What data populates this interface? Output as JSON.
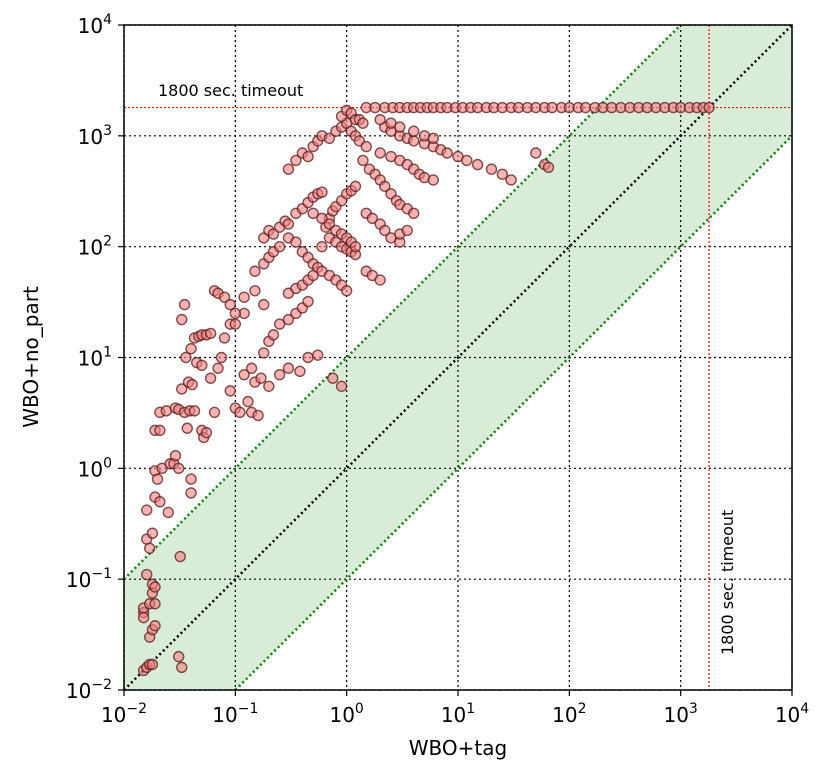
{
  "chart_data": {
    "type": "scatter",
    "xlabel": "WBO+tag",
    "ylabel": "WBO+no_part",
    "xscale": "log",
    "yscale": "log",
    "xlim": [
      0.01,
      10000
    ],
    "ylim": [
      0.01,
      10000
    ],
    "grid": true,
    "x_ticks": [
      {
        "base": "10",
        "exp": "−2",
        "value": 0.01
      },
      {
        "base": "10",
        "exp": "−1",
        "value": 0.1
      },
      {
        "base": "10",
        "exp": "0",
        "value": 1
      },
      {
        "base": "10",
        "exp": "1",
        "value": 10
      },
      {
        "base": "10",
        "exp": "2",
        "value": 100
      },
      {
        "base": "10",
        "exp": "3",
        "value": 1000
      },
      {
        "base": "10",
        "exp": "4",
        "value": 10000
      }
    ],
    "y_ticks": [
      {
        "base": "10",
        "exp": "−2",
        "value": 0.01
      },
      {
        "base": "10",
        "exp": "−1",
        "value": 0.1
      },
      {
        "base": "10",
        "exp": "0",
        "value": 1
      },
      {
        "base": "10",
        "exp": "1",
        "value": 10
      },
      {
        "base": "10",
        "exp": "2",
        "value": 100
      },
      {
        "base": "10",
        "exp": "3",
        "value": 1000
      },
      {
        "base": "10",
        "exp": "4",
        "value": 10000
      }
    ],
    "timeout": 1800,
    "timeout_label_h": "1800 sec. timeout",
    "timeout_label_v": "1800 sec. timeout",
    "band_factor": 10,
    "colors": {
      "marker_fill": "#f08080",
      "marker_edge": "#5a1a1a",
      "timeout_line": "#ff0000",
      "diagonal": "#000000",
      "band_line": "#008000",
      "band_fill": "#d9ecd8",
      "grid": "#000000"
    },
    "points": [
      [
        0.015,
        0.015
      ],
      [
        0.016,
        0.016
      ],
      [
        0.017,
        0.017
      ],
      [
        0.018,
        0.017
      ],
      [
        0.015,
        0.05
      ],
      [
        0.015,
        0.055
      ],
      [
        0.015,
        0.045
      ],
      [
        0.017,
        0.03
      ],
      [
        0.018,
        0.035
      ],
      [
        0.019,
        0.038
      ],
      [
        0.016,
        0.11
      ],
      [
        0.018,
        0.09
      ],
      [
        0.018,
        0.075
      ],
      [
        0.019,
        0.085
      ],
      [
        0.017,
        0.06
      ],
      [
        0.019,
        0.06
      ],
      [
        0.031,
        0.02
      ],
      [
        0.033,
        0.016
      ],
      [
        0.032,
        0.16
      ],
      [
        0.016,
        0.42
      ],
      [
        0.016,
        0.23
      ],
      [
        0.017,
        0.19
      ],
      [
        0.018,
        0.26
      ],
      [
        0.019,
        0.55
      ],
      [
        0.021,
        0.5
      ],
      [
        0.019,
        0.95
      ],
      [
        0.022,
        1.0
      ],
      [
        0.02,
        0.8
      ],
      [
        0.019,
        2.2
      ],
      [
        0.021,
        2.2
      ],
      [
        0.021,
        3.2
      ],
      [
        0.024,
        3.3
      ],
      [
        0.026,
        1.1
      ],
      [
        0.028,
        1.1
      ],
      [
        0.029,
        1.3
      ],
      [
        0.025,
        0.4
      ],
      [
        0.031,
        1.0
      ],
      [
        0.029,
        3.5
      ],
      [
        0.031,
        3.4
      ],
      [
        0.033,
        5.2
      ],
      [
        0.035,
        3.2
      ],
      [
        0.037,
        2.3
      ],
      [
        0.04,
        0.6
      ],
      [
        0.04,
        0.8
      ],
      [
        0.039,
        3.3
      ],
      [
        0.043,
        3.3
      ],
      [
        0.038,
        6.0
      ],
      [
        0.041,
        5.7
      ],
      [
        0.036,
        10.0
      ],
      [
        0.04,
        12.0
      ],
      [
        0.043,
        15.0
      ],
      [
        0.047,
        15.5
      ],
      [
        0.05,
        16.0
      ],
      [
        0.055,
        16.0
      ],
      [
        0.06,
        16.5
      ],
      [
        0.05,
        2.2
      ],
      [
        0.052,
        1.9
      ],
      [
        0.055,
        2.1
      ],
      [
        0.033,
        22.0
      ],
      [
        0.035,
        30.0
      ],
      [
        0.045,
        9.0
      ],
      [
        0.05,
        8.5
      ],
      [
        0.06,
        6.5
      ],
      [
        0.065,
        3.2
      ],
      [
        0.07,
        8.0
      ],
      [
        0.075,
        10.0
      ],
      [
        0.08,
        15.0
      ],
      [
        0.09,
        20.0
      ],
      [
        0.1,
        20.0
      ],
      [
        0.12,
        25.0
      ],
      [
        0.065,
        40.0
      ],
      [
        0.07,
        38.0
      ],
      [
        0.08,
        35.0
      ],
      [
        0.09,
        30.0
      ],
      [
        0.1,
        25.0
      ],
      [
        0.12,
        35.0
      ],
      [
        0.15,
        40.0
      ],
      [
        0.18,
        30.0
      ],
      [
        0.1,
        3.5
      ],
      [
        0.11,
        3.2
      ],
      [
        0.14,
        3.2
      ],
      [
        0.16,
        3.0
      ],
      [
        0.13,
        4.0
      ],
      [
        0.09,
        5.0
      ],
      [
        0.15,
        6.0
      ],
      [
        0.17,
        6.5
      ],
      [
        0.2,
        5.5
      ],
      [
        0.25,
        7.0
      ],
      [
        0.3,
        8.0
      ],
      [
        0.38,
        7.5
      ],
      [
        0.45,
        10.0
      ],
      [
        0.55,
        10.5
      ],
      [
        0.75,
        6.5
      ],
      [
        0.9,
        5.5
      ],
      [
        0.12,
        7.0
      ],
      [
        0.14,
        8.0
      ],
      [
        0.18,
        11.0
      ],
      [
        0.2,
        14.0
      ],
      [
        0.22,
        16.0
      ],
      [
        0.25,
        20.0
      ],
      [
        0.3,
        22.0
      ],
      [
        0.35,
        25.0
      ],
      [
        0.4,
        28.0
      ],
      [
        0.45,
        32.0
      ],
      [
        0.3,
        38.0
      ],
      [
        0.35,
        42.0
      ],
      [
        0.4,
        45.0
      ],
      [
        0.45,
        50.0
      ],
      [
        0.5,
        55.0
      ],
      [
        0.15,
        60.0
      ],
      [
        0.18,
        70.0
      ],
      [
        0.2,
        80.0
      ],
      [
        0.22,
        90.0
      ],
      [
        0.25,
        100.0
      ],
      [
        0.3,
        120.0
      ],
      [
        0.35,
        110.0
      ],
      [
        0.4,
        90.0
      ],
      [
        0.45,
        80.0
      ],
      [
        0.5,
        70.0
      ],
      [
        0.55,
        65.0
      ],
      [
        0.6,
        60.0
      ],
      [
        0.7,
        55.0
      ],
      [
        0.8,
        50.0
      ],
      [
        0.9,
        45.0
      ],
      [
        1.0,
        40.0
      ],
      [
        0.18,
        120.0
      ],
      [
        0.2,
        140.0
      ],
      [
        0.22,
        130.0
      ],
      [
        0.25,
        150.0
      ],
      [
        0.28,
        170.0
      ],
      [
        0.3,
        160.0
      ],
      [
        0.35,
        200.0
      ],
      [
        0.4,
        220.0
      ],
      [
        0.45,
        250.0
      ],
      [
        0.5,
        280.0
      ],
      [
        0.55,
        300.0
      ],
      [
        0.6,
        310.0
      ],
      [
        0.65,
        150.0
      ],
      [
        0.7,
        180.0
      ],
      [
        0.75,
        210.0
      ],
      [
        0.8,
        230.0
      ],
      [
        0.9,
        260.0
      ],
      [
        1.0,
        300.0
      ],
      [
        1.1,
        320.0
      ],
      [
        1.2,
        350.0
      ],
      [
        0.6,
        100.0
      ],
      [
        0.7,
        120.0
      ],
      [
        0.8,
        110.0
      ],
      [
        0.9,
        100.0
      ],
      [
        1.0,
        95.0
      ],
      [
        1.1,
        90.0
      ],
      [
        1.2,
        85.0
      ],
      [
        0.3,
        500.0
      ],
      [
        0.35,
        600.0
      ],
      [
        0.4,
        700.0
      ],
      [
        0.45,
        650.0
      ],
      [
        0.5,
        800.0
      ],
      [
        0.55,
        900.0
      ],
      [
        0.6,
        1000.0
      ],
      [
        0.7,
        950.0
      ],
      [
        0.8,
        1100.0
      ],
      [
        0.9,
        1200.0
      ],
      [
        1.0,
        1300.0
      ],
      [
        1.1,
        1100.0
      ],
      [
        1.2,
        1000.0
      ],
      [
        1.3,
        900.0
      ],
      [
        1.5,
        800.0
      ],
      [
        0.9,
        1500.0
      ],
      [
        1.0,
        1700.0
      ],
      [
        1.1,
        1600.0
      ],
      [
        1.2,
        1400.0
      ],
      [
        1.4,
        600.0
      ],
      [
        1.6,
        500.0
      ],
      [
        1.8,
        450.0
      ],
      [
        2.0,
        400.0
      ],
      [
        2.2,
        350.0
      ],
      [
        2.5,
        300.0
      ],
      [
        2.8,
        260.0
      ],
      [
        3.0,
        240.0
      ],
      [
        3.5,
        220.0
      ],
      [
        4.0,
        200.0
      ],
      [
        2.0,
        700.0
      ],
      [
        2.5,
        650.0
      ],
      [
        3.0,
        600.0
      ],
      [
        3.5,
        550.0
      ],
      [
        4.0,
        500.0
      ],
      [
        4.5,
        450.0
      ],
      [
        5.0,
        420.0
      ],
      [
        6.0,
        400.0
      ],
      [
        1.5,
        200.0
      ],
      [
        1.7,
        180.0
      ],
      [
        2.0,
        160.0
      ],
      [
        2.2,
        140.0
      ],
      [
        2.5,
        120.0
      ],
      [
        3.0,
        110.0
      ],
      [
        1.5,
        60.0
      ],
      [
        1.7,
        55.0
      ],
      [
        2.0,
        50.0
      ],
      [
        2.2,
        1200.0
      ],
      [
        2.5,
        1100.0
      ],
      [
        3.0,
        1000.0
      ],
      [
        3.5,
        950.0
      ],
      [
        4.0,
        900.0
      ],
      [
        5.0,
        850.0
      ],
      [
        6.0,
        800.0
      ],
      [
        7.0,
        750.0
      ],
      [
        8.0,
        700.0
      ],
      [
        10.0,
        650.0
      ],
      [
        12.0,
        600.0
      ],
      [
        15.0,
        550.0
      ],
      [
        20.0,
        500.0
      ],
      [
        25.0,
        450.0
      ],
      [
        30.0,
        400.0
      ],
      [
        3.0,
        130.0
      ],
      [
        3.5,
        140.0
      ],
      [
        1.3,
        1400.0
      ],
      [
        1.4,
        1300.0
      ],
      [
        2.0,
        1400.0
      ],
      [
        2.5,
        1300.0
      ],
      [
        3.0,
        1200.0
      ],
      [
        4.0,
        1100.0
      ],
      [
        5.0,
        1000.0
      ],
      [
        6.0,
        950.0
      ],
      [
        50.0,
        700.0
      ],
      [
        60.0,
        550.0
      ],
      [
        65.0,
        520.0
      ],
      [
        0.5,
        200.0
      ],
      [
        0.6,
        180.0
      ],
      [
        0.7,
        160.0
      ],
      [
        0.8,
        140.0
      ],
      [
        0.9,
        130.0
      ],
      [
        1.0,
        120.0
      ],
      [
        1.1,
        110.0
      ],
      [
        1.2,
        100.0
      ],
      [
        1.5,
        1800
      ],
      [
        1.8,
        1800
      ],
      [
        2.2,
        1800
      ],
      [
        2.6,
        1800
      ],
      [
        3.0,
        1800
      ],
      [
        3.5,
        1800
      ],
      [
        4.0,
        1800
      ],
      [
        4.6,
        1800
      ],
      [
        5.3,
        1800
      ],
      [
        6.0,
        1800
      ],
      [
        7.0,
        1800
      ],
      [
        8.0,
        1800
      ],
      [
        9.5,
        1800
      ],
      [
        11.0,
        1800
      ],
      [
        13.0,
        1800
      ],
      [
        15.0,
        1800
      ],
      [
        18.0,
        1800
      ],
      [
        21.0,
        1800
      ],
      [
        25.0,
        1800
      ],
      [
        30.0,
        1800
      ],
      [
        35.0,
        1800
      ],
      [
        42.0,
        1800
      ],
      [
        50.0,
        1800
      ],
      [
        60.0,
        1800
      ],
      [
        70.0,
        1800
      ],
      [
        85.0,
        1800
      ],
      [
        100.0,
        1800
      ],
      [
        120.0,
        1800
      ],
      [
        140.0,
        1800
      ],
      [
        170.0,
        1800
      ],
      [
        200.0,
        1800
      ],
      [
        240.0,
        1800
      ],
      [
        290.0,
        1800
      ],
      [
        350.0,
        1800
      ],
      [
        420.0,
        1800
      ],
      [
        500.0,
        1800
      ],
      [
        600.0,
        1800
      ],
      [
        720.0,
        1800
      ],
      [
        860.0,
        1800
      ],
      [
        1000.0,
        1800
      ],
      [
        1200.0,
        1800
      ],
      [
        1400.0,
        1800
      ],
      [
        1600.0,
        1800
      ],
      [
        1800.0,
        1800
      ]
    ]
  }
}
